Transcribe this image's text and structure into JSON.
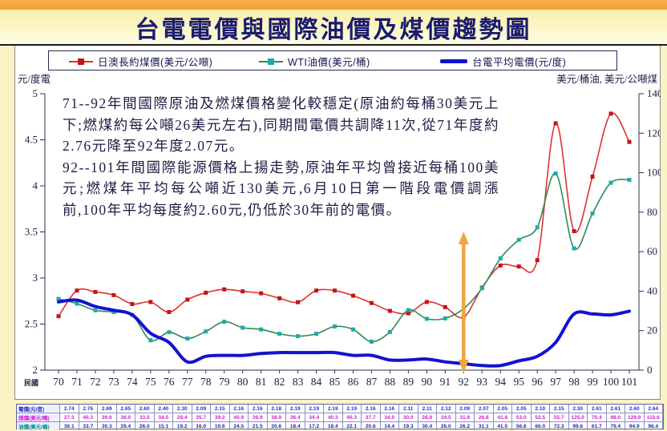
{
  "page": {
    "title": "台電電價與國際油價及煤價趨勢圖"
  },
  "legend": [
    {
      "label": "日澳長約煤價(美元/公噸)",
      "line_color": "#E03030",
      "marker_color": "#C41414"
    },
    {
      "label": "WTI油價(美元/桶)",
      "line_color": "#2F8A57",
      "marker_color": "#1FAAAA"
    },
    {
      "label": "台電平均電價(元/度)",
      "line_color": "#1212D0"
    }
  ],
  "axes": {
    "left_label": "元/度電",
    "right_label": "美元/桶油, 美元/公噸煤",
    "x_prefix": "民國",
    "left_ticks": [
      5,
      4.5,
      4,
      3.5,
      3,
      2.5,
      2
    ],
    "right_ticks": [
      140,
      120,
      100,
      80,
      60,
      40,
      20,
      0
    ],
    "left_range": [
      2,
      5
    ],
    "right_range": [
      0,
      140
    ]
  },
  "annotation": {
    "para1": "71--92年間國際原油及燃煤價格變化較穩定(原油約每桶30美元上下;燃煤約每公噸26美元左右),同期間電價共調降11次,從71年度約2.76元降至92年度2.07元。",
    "para2": "92--101年間國際能源價格上揚走勢,原油年平均曾接近每桶100美元;燃煤年平均每公噸近130美元,6月10日第一階段電價調漲前,100年平均每度約2.60元,仍低於30年前的電價。"
  },
  "chart_data": {
    "type": "line",
    "x": [
      70,
      71,
      72,
      73,
      74,
      75,
      76,
      77,
      78,
      79,
      80,
      81,
      82,
      83,
      84,
      85,
      86,
      87,
      88,
      89,
      90,
      91,
      92,
      93,
      94,
      95,
      96,
      97,
      98,
      99,
      100,
      101
    ],
    "series": [
      {
        "name": "日澳長約煤價(美元/公噸)",
        "axis": "right",
        "values": [
          27.3,
          40.3,
          39.6,
          38.0,
          33.5,
          34.5,
          29.4,
          35.7,
          39.2,
          40.9,
          39.9,
          38.9,
          36.4,
          34.4,
          40.3,
          40.3,
          37.7,
          34.0,
          30.0,
          28.8,
          34.5,
          31.9,
          26.8,
          41.8,
          53.0,
          52.5,
          55.7,
          125.0,
          70.4,
          98.0,
          129.9,
          115.6
        ]
      },
      {
        "name": "WTI油價(美元/桶)",
        "axis": "right",
        "values": [
          36.1,
          33.7,
          30.3,
          29.4,
          28.0,
          15.1,
          19.2,
          16.0,
          19.6,
          24.5,
          21.5,
          20.6,
          18.4,
          17.2,
          18.4,
          22.1,
          20.6,
          14.4,
          19.3,
          30.4,
          26.0,
          26.2,
          31.1,
          41.5,
          56.6,
          66.0,
          72.3,
          99.6,
          61.7,
          79.4,
          94.9,
          96.4
        ]
      },
      {
        "name": "台電平均電價(元/度)",
        "axis": "left",
        "values": [
          2.74,
          2.76,
          2.69,
          2.65,
          2.6,
          2.4,
          2.3,
          2.09,
          2.15,
          2.16,
          2.16,
          2.18,
          2.19,
          2.19,
          2.19,
          2.19,
          2.16,
          2.16,
          2.11,
          2.11,
          2.12,
          2.09,
          2.07,
          2.05,
          2.05,
          2.1,
          2.15,
          2.3,
          2.61,
          2.61,
          2.6,
          2.64
        ]
      }
    ],
    "title": "台電電價與國際油價及煤價趨勢圖",
    "ylabel_left": "元/度電",
    "ylabel_right": "美元/桶油, 美元/公噸煤",
    "left_ylim": [
      2,
      5
    ],
    "right_ylim": [
      0,
      140
    ],
    "grid": false,
    "legend_position": "top",
    "annotations": {
      "arrow_year": 92,
      "arrow_color": "#F0A63C"
    }
  },
  "table": {
    "rows": [
      {
        "label": "電價(元/度)",
        "label_color": "#2B2BCC",
        "value_color": "#2B2BCC",
        "series_index": 2,
        "decimals": 2
      },
      {
        "label": "煤價(美元/噸)",
        "label_color": "#CC22CC",
        "value_color": "#CC22CC",
        "series_index": 0,
        "decimals": 1
      },
      {
        "label": "油價(美元/桶)",
        "label_color": "#008888",
        "value_color": "#28288C",
        "series_index": 1,
        "decimals": 1
      }
    ]
  }
}
